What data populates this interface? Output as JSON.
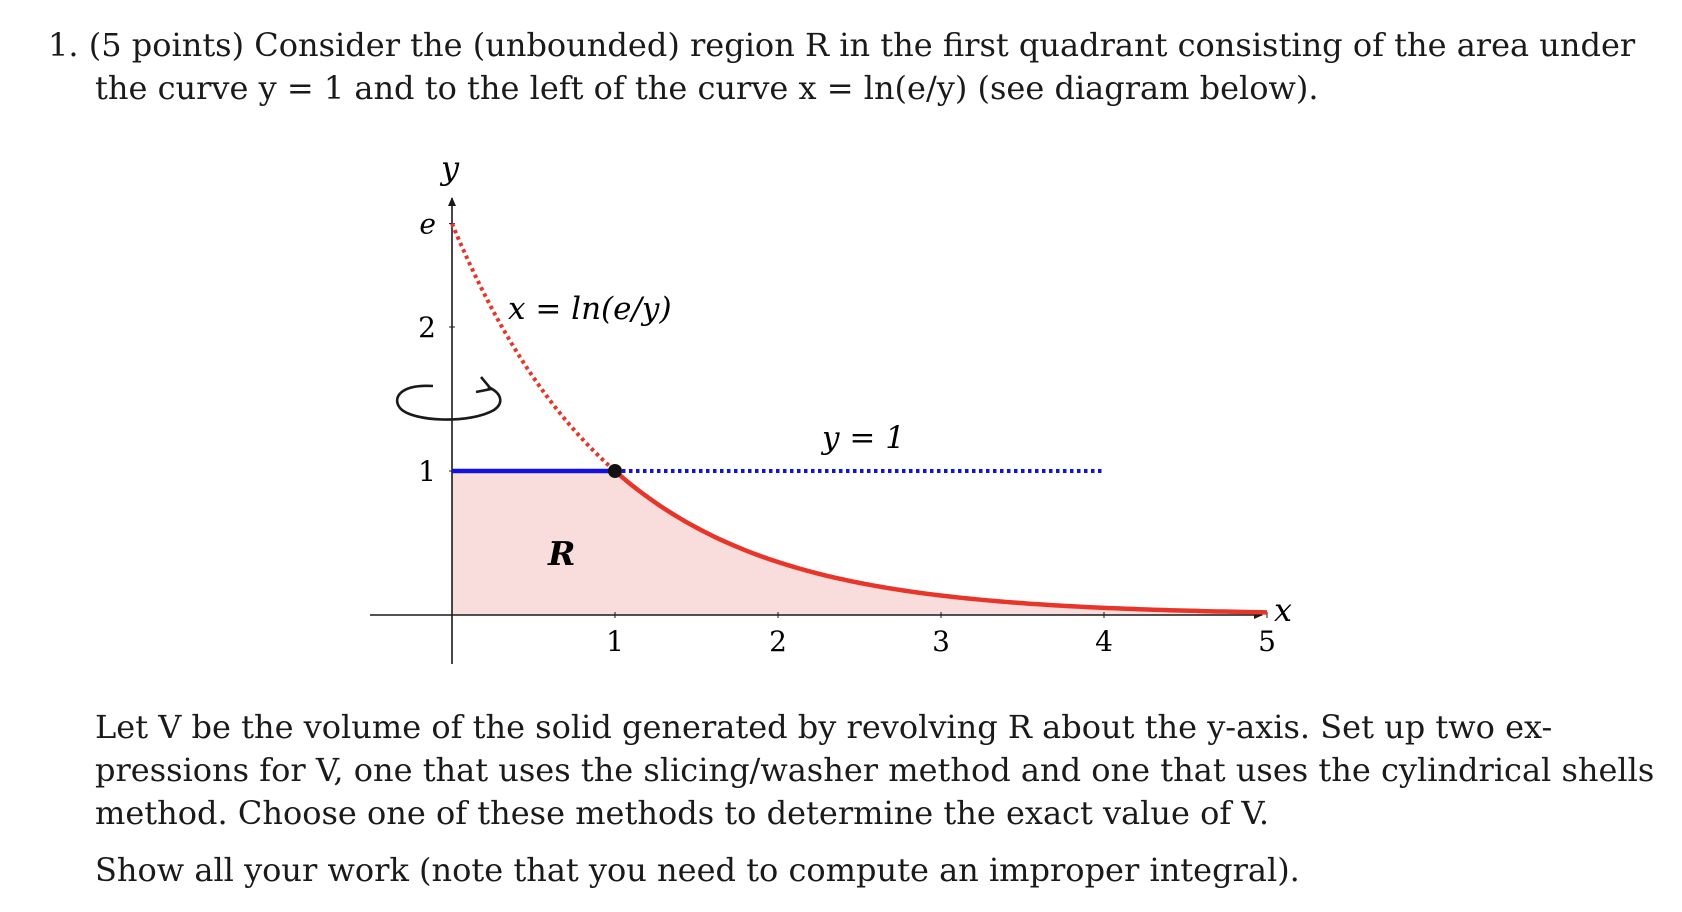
{
  "problem": {
    "number": "1.",
    "points": "(5 points)",
    "intro_line1": "Consider the (unbounded) region R in the first quadrant consisting of the area under",
    "intro_line2": "the curve y = 1 and to the left of the curve x = ln(e/y) (see diagram below)."
  },
  "figure": {
    "x_axis_label": "x",
    "y_axis_label": "y",
    "x_ticks": [
      "1",
      "2",
      "3",
      "4",
      "5"
    ],
    "y_ticks": [
      "1",
      "2",
      "e"
    ],
    "curve_label": "x = ln(e/y)",
    "line_label": "y = 1",
    "region_label": "R",
    "colors": {
      "curve": "#e8352a",
      "line": "#1010e0",
      "region_fill": "#f9dddd",
      "axis": "#1a1a1a"
    }
  },
  "body": {
    "paragraph1_line1": "Let V be the volume of the solid generated by revolving R about the y-axis. Set up two ex-",
    "paragraph1_line2": "pressions for V, one that uses the slicing/washer method and one that uses the cylindrical shells",
    "paragraph1_line3": "method. Choose one of these methods to determine the exact value of V.",
    "paragraph2": "Show all your work (note that you need to compute an improper integral)."
  }
}
